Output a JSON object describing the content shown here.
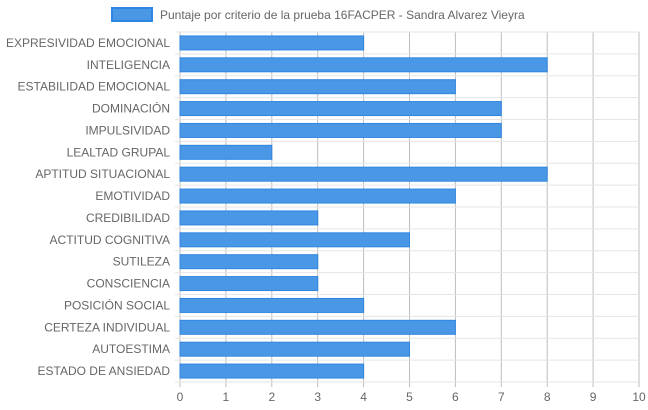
{
  "chart_data": {
    "type": "bar",
    "orientation": "horizontal",
    "legend_position": "top",
    "grid": true,
    "xlim": [
      0,
      10
    ],
    "x_ticks": [
      "0",
      "1",
      "2",
      "3",
      "4",
      "5",
      "6",
      "7",
      "8",
      "9",
      "10"
    ],
    "categories": [
      "EXPRESIVIDAD EMOCIONAL",
      "INTELIGENCIA",
      "ESTABILIDAD EMOCIONAL",
      "DOMINACIÓN",
      "IMPULSIVIDAD",
      "LEALTAD GRUPAL",
      "APTITUD SITUACIONAL",
      "EMOTIVIDAD",
      "CREDIBILIDAD",
      "ACTITUD COGNITIVA",
      "SUTILEZA",
      "CONSCIENCIA",
      "POSICIÓN SOCIAL",
      "CERTEZA INDIVIDUAL",
      "AUTOESTIMA",
      "ESTADO DE ANSIEDAD"
    ],
    "series": [
      {
        "name": "Puntaje por criterio de la prueba 16FACPER - Sandra Alvarez Vieyra",
        "values": [
          4,
          8,
          6,
          7,
          7,
          2,
          8,
          6,
          3,
          5,
          3,
          3,
          4,
          6,
          5,
          4
        ]
      }
    ],
    "colors": {
      "bar_fill": "#4a97e6",
      "bar_stroke": "#2f86e0",
      "grid": "#e5e5e5",
      "axis": "#bdbdbd"
    }
  }
}
